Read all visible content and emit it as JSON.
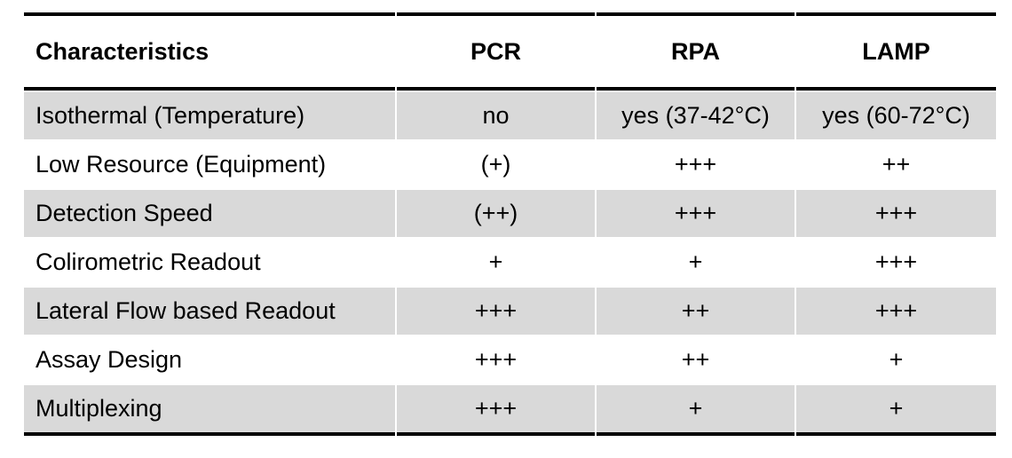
{
  "table": {
    "columns": [
      "Characteristics",
      "PCR",
      "RPA",
      "LAMP"
    ],
    "rows": [
      {
        "label": "Isothermal (Temperature)",
        "values": [
          "no",
          "yes (37-42°C)",
          "yes (60-72°C)"
        ]
      },
      {
        "label": "Low Resource (Equipment)",
        "values": [
          "(+)",
          "+++",
          "++"
        ]
      },
      {
        "label": "Detection Speed",
        "values": [
          "(++)",
          "+++",
          "+++"
        ]
      },
      {
        "label": "Colirometric Readout",
        "values": [
          "+",
          "+",
          "+++"
        ]
      },
      {
        "label": "Lateral Flow based Readout",
        "values": [
          "+++",
          "++",
          "+++"
        ]
      },
      {
        "label": "Assay Design",
        "values": [
          "+++",
          "++",
          "+"
        ]
      },
      {
        "label": "Multiplexing",
        "values": [
          "+++",
          "+",
          "+"
        ]
      }
    ],
    "colors": {
      "row_shade": "#d9d9d9",
      "border": "#000000",
      "background": "#ffffff",
      "text": "#000000"
    }
  }
}
